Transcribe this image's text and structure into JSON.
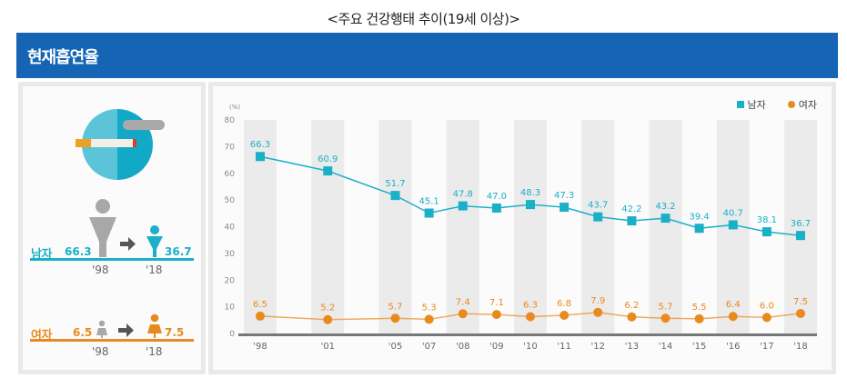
{
  "page_title": "<주요 건강행태 추이(19세 이상)>",
  "banner": {
    "title": "현재흡연율"
  },
  "colors": {
    "banner": "#1565b4",
    "male": "#1ab0c8",
    "female": "#e98a1e",
    "column_shade": "#ebebeb",
    "axis": "#777777",
    "gray_figure": "#a8a8a8",
    "arrow": "#555555"
  },
  "summary": {
    "icon": "no-smoking-cigarette-icon",
    "male": {
      "label": "남자",
      "from_value": "66.3",
      "to_value": "36.7",
      "from_year": "'98",
      "to_year": "'18"
    },
    "female": {
      "label": "여자",
      "from_value": "6.5",
      "to_value": "7.5",
      "from_year": "'98",
      "to_year": "'18"
    }
  },
  "chart_data": {
    "type": "line",
    "title": "",
    "ylabel": "(%)",
    "xlabel": "",
    "ylim": [
      0,
      80
    ],
    "yticks": [
      0,
      10,
      20,
      30,
      40,
      50,
      60,
      70,
      80
    ],
    "categories": [
      "'98",
      "'01",
      "'05",
      "'07",
      "'08",
      "'09",
      "'10",
      "'11",
      "'12",
      "'13",
      "'14",
      "'15",
      "'16",
      "'17",
      "'18"
    ],
    "x_years": [
      1998,
      2001,
      2005,
      2007,
      2008,
      2009,
      2010,
      2011,
      2012,
      2013,
      2014,
      2015,
      2016,
      2017,
      2018
    ],
    "shaded_categories": [
      "'98",
      "'01",
      "'05",
      "'08",
      "'10",
      "'12",
      "'14",
      "'16",
      "'18"
    ],
    "legend": {
      "placement": "top-right",
      "entries": [
        "남자",
        "여자"
      ]
    },
    "series": [
      {
        "name": "남자",
        "marker": "square",
        "values": [
          66.3,
          60.9,
          51.7,
          45.1,
          47.8,
          47.0,
          48.3,
          47.3,
          43.7,
          42.2,
          43.2,
          39.4,
          40.7,
          38.1,
          36.7
        ],
        "labels": [
          "66.3",
          "60.9",
          "51.7",
          "45.1",
          "47.8",
          "47.0",
          "48.3",
          "47.3",
          "43.7",
          "42.2",
          "43.2",
          "39.4",
          "40.7",
          "38.1",
          "36.7"
        ]
      },
      {
        "name": "여자",
        "marker": "circle",
        "values": [
          6.5,
          5.2,
          5.7,
          5.3,
          7.4,
          7.1,
          6.3,
          6.8,
          7.9,
          6.2,
          5.7,
          5.5,
          6.4,
          6.0,
          7.5
        ],
        "labels": [
          "6.5",
          "5.2",
          "5.7",
          "5.3",
          "7.4",
          "7.1",
          "6.3",
          "6.8",
          "7.9",
          "6.2",
          "5.7",
          "5.5",
          "6.4",
          "6.0",
          "7.5"
        ]
      }
    ]
  }
}
